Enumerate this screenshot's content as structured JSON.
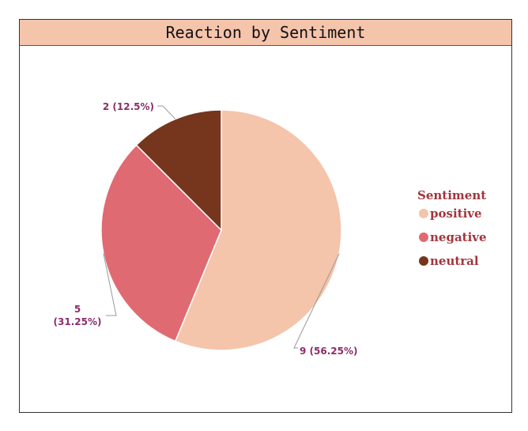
{
  "chart_data": {
    "type": "pie",
    "title": "Reaction by Sentiment",
    "categories": [
      "positive",
      "negative",
      "neutral"
    ],
    "values": [
      9,
      5,
      2
    ],
    "percentages": [
      56.25,
      31.25,
      12.5
    ],
    "data_labels": [
      "9 (56.25%)",
      "5 (31.25%)",
      "2 (12.5%)"
    ],
    "colors": [
      "#f4c4ab",
      "#e06a72",
      "#76351d"
    ],
    "legend": {
      "title": "Sentiment",
      "placement": "right"
    }
  },
  "colors": {
    "title_background": "#f4c4ab",
    "label_text": "#8b2d6a",
    "legend_title_text": "#a3353d",
    "legend_label_text": "#a3353d",
    "leader_line": "#999999"
  }
}
